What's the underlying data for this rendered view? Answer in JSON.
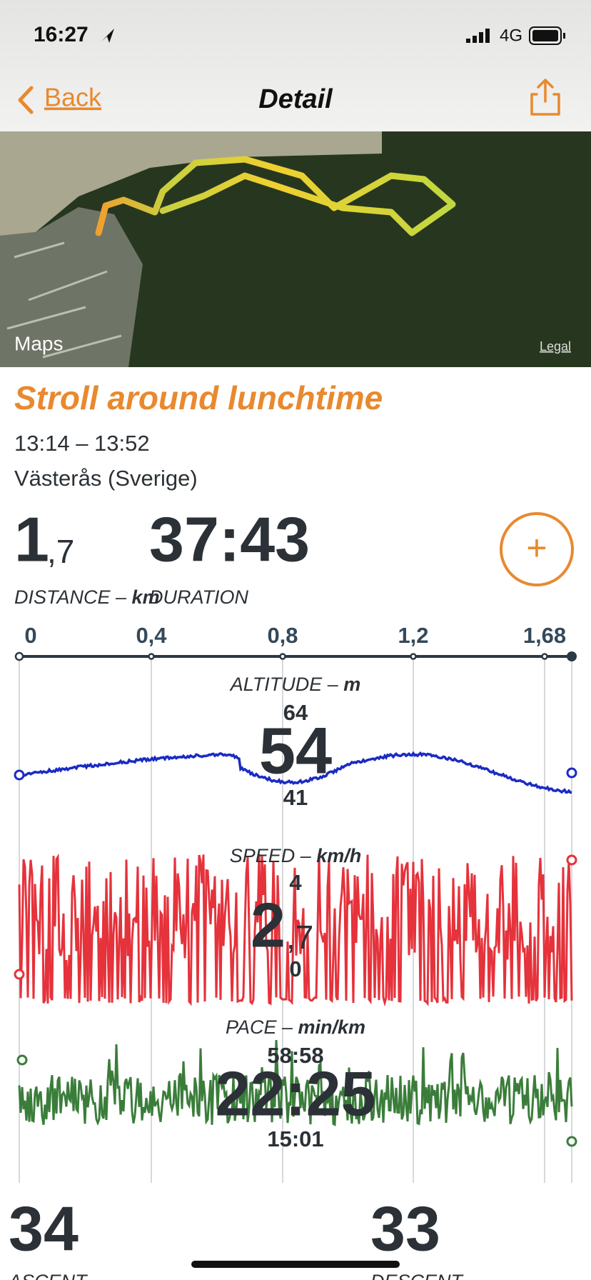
{
  "status_bar": {
    "time": "16:27",
    "network": "4G"
  },
  "nav": {
    "back": "Back",
    "title": "Detail"
  },
  "map": {
    "brand": "Maps",
    "legal": "Legal"
  },
  "activity": {
    "title": "Stroll around lunchtime",
    "time_range": "13:14 – 13:52",
    "location": "Västerås (Sverige)"
  },
  "summary": {
    "distance_whole": "1",
    "distance_fraction": ",7",
    "distance_label": "DISTANCE",
    "distance_unit": "km",
    "duration": "37:43",
    "duration_label": "DURATION",
    "add_button": "+"
  },
  "distance_axis": {
    "ticks": [
      "0",
      "0,4",
      "0,8",
      "1,2",
      "1,68"
    ]
  },
  "altitude": {
    "label": "ALTITUDE",
    "unit": "m",
    "max": "64",
    "current": "54",
    "min": "41"
  },
  "speed": {
    "label": "SPEED",
    "unit": "km/h",
    "max": "4",
    "current_whole": "2",
    "current_fraction": ",7",
    "min": "0"
  },
  "pace": {
    "label": "PACE",
    "unit": "min/km",
    "max": "58:58",
    "current": "22:25",
    "min": "15:01"
  },
  "footer": {
    "ascent": "34",
    "ascent_label": "ASCENT",
    "descent": "33",
    "descent_label": "DESCENT"
  }
}
